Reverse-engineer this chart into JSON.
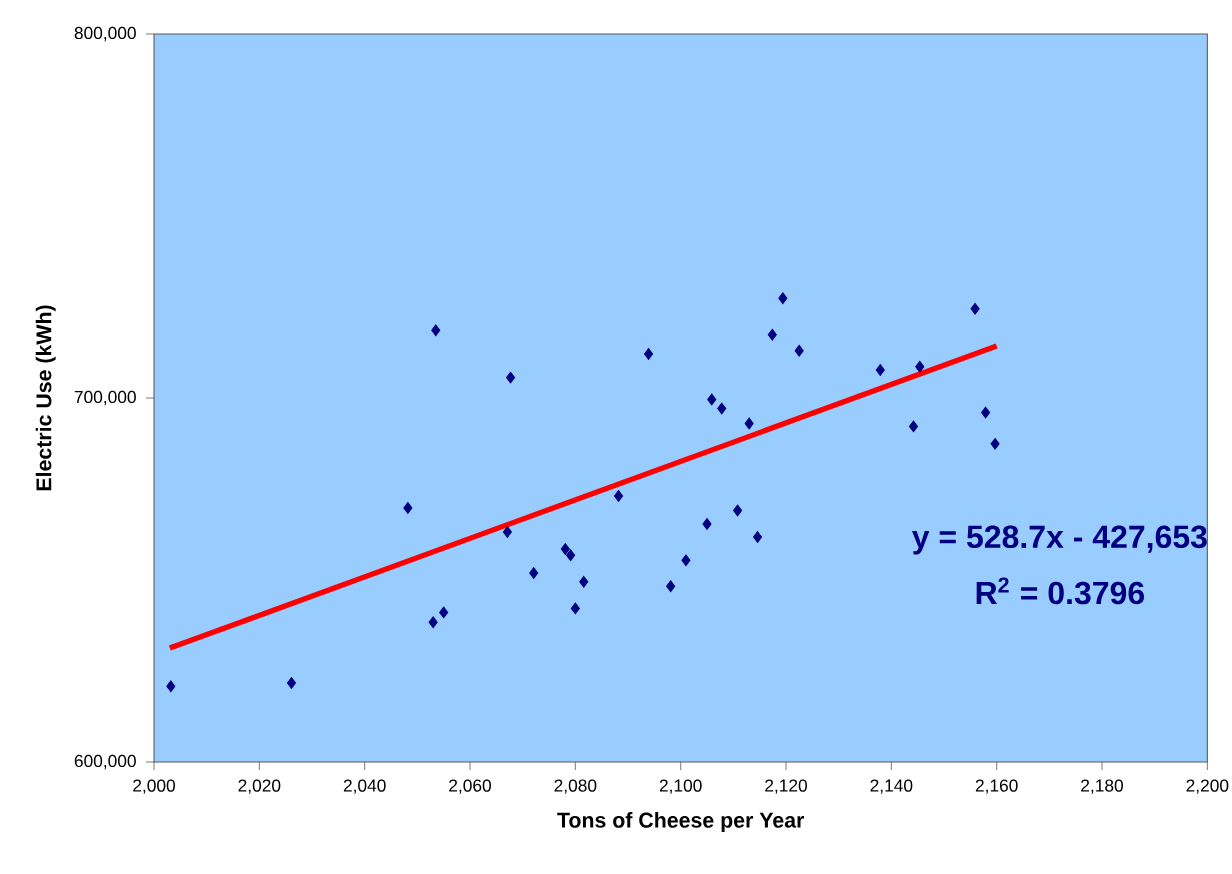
{
  "chart_data": {
    "type": "scatter",
    "xlabel": "Tons of Cheese per Year",
    "ylabel": "Electric Use (kWh)",
    "xlim": [
      2000,
      2200
    ],
    "ylim": [
      600000,
      800000
    ],
    "xticks": [
      {
        "value": 2000,
        "label": "2,000"
      },
      {
        "value": 2020,
        "label": "2,020"
      },
      {
        "value": 2040,
        "label": "2,040"
      },
      {
        "value": 2060,
        "label": "2,060"
      },
      {
        "value": 2080,
        "label": "2,080"
      },
      {
        "value": 2100,
        "label": "2,100"
      },
      {
        "value": 2120,
        "label": "2,120"
      },
      {
        "value": 2140,
        "label": "2,140"
      },
      {
        "value": 2160,
        "label": "2,160"
      },
      {
        "value": 2180,
        "label": "2,180"
      },
      {
        "value": 2200,
        "label": "2,200"
      }
    ],
    "yticks": [
      {
        "value": 600000,
        "label": "600,000"
      },
      {
        "value": 700000,
        "label": "700,000"
      },
      {
        "value": 800000,
        "label": "800,000"
      }
    ],
    "series": [
      {
        "marker": "diamond",
        "color": "#000080",
        "x": [
          2003.2,
          2026.1,
          2048.2,
          2053.0,
          2053.5,
          2055.0,
          2067.7,
          2067.1,
          2072.1,
          2078.1,
          2079.1,
          2080.0,
          2081.6,
          2088.2,
          2093.9,
          2098.1,
          2101.0,
          2105.0,
          2105.9,
          2107.8,
          2110.8,
          2113.0,
          2114.6,
          2117.4,
          2119.4,
          2122.5,
          2137.9,
          2145.4,
          2144.2,
          2155.9,
          2157.9,
          2159.7
        ],
        "values": [
          620800,
          621700,
          669800,
          638400,
          718600,
          641100,
          705600,
          663200,
          651900,
          658500,
          656800,
          642200,
          649500,
          673100,
          712100,
          648300,
          655400,
          665400,
          699600,
          697100,
          669100,
          693000,
          661800,
          717400,
          727400,
          713000,
          707700,
          708600,
          692200,
          724500,
          696000,
          687400
        ]
      },
      {
        "type": "line",
        "marker": "none",
        "color": "#ff0000",
        "x": [
          2003,
          2160
        ],
        "values": [
          631300,
          714300
        ]
      }
    ],
    "annotations": [
      "y = 528.7x - 427,653",
      "R$^{2}$ = 0.3796"
    ]
  }
}
